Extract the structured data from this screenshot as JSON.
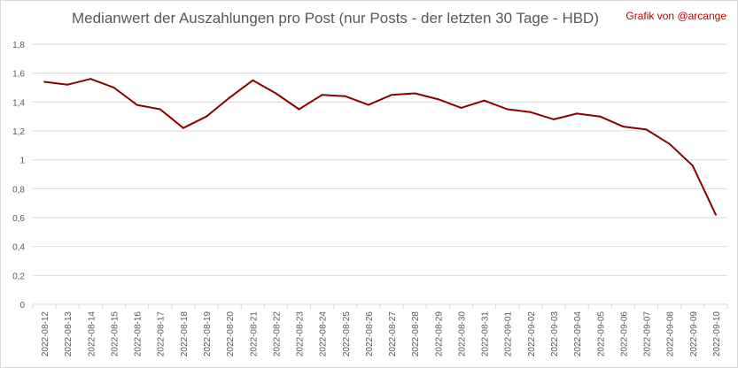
{
  "title": "Medianwert der Auszahlungen pro Post (nur Posts - der letzten 30 Tage - HBD)",
  "credit": "Grafik von @arcange",
  "colors": {
    "line": "#8b0000",
    "grid": "#d9d9d9",
    "axis_text": "#595959",
    "credit": "#c00000"
  },
  "chart_data": {
    "type": "line",
    "title": "Medianwert der Auszahlungen pro Post (nur Posts - der letzten 30 Tage - HBD)",
    "xlabel": "",
    "ylabel": "",
    "ylim": [
      0,
      1.8
    ],
    "grid": true,
    "legend": "none",
    "y_ticks": [
      "0",
      "0,2",
      "0,4",
      "0,6",
      "0,8",
      "1",
      "1,2",
      "1,4",
      "1,6",
      "1,8"
    ],
    "categories": [
      "2022-08-12",
      "2022-08-13",
      "2022-08-14",
      "2022-08-15",
      "2022-08-16",
      "2022-08-17",
      "2022-08-18",
      "2022-08-19",
      "2022-08-20",
      "2022-08-21",
      "2022-08-22",
      "2022-08-23",
      "2022-08-24",
      "2022-08-25",
      "2022-08-26",
      "2022-08-27",
      "2022-08-28",
      "2022-08-29",
      "2022-08-30",
      "2022-08-31",
      "2022-09-01",
      "2022-09-02",
      "2022-09-03",
      "2022-09-04",
      "2022-09-05",
      "2022-09-06",
      "2022-09-07",
      "2022-09-08",
      "2022-09-09",
      "2022-09-10"
    ],
    "values": [
      1.54,
      1.52,
      1.56,
      1.5,
      1.38,
      1.35,
      1.22,
      1.3,
      1.43,
      1.55,
      1.46,
      1.35,
      1.45,
      1.44,
      1.38,
      1.45,
      1.46,
      1.42,
      1.36,
      1.41,
      1.35,
      1.33,
      1.28,
      1.32,
      1.3,
      1.23,
      1.21,
      1.11,
      0.96,
      0.62
    ]
  }
}
